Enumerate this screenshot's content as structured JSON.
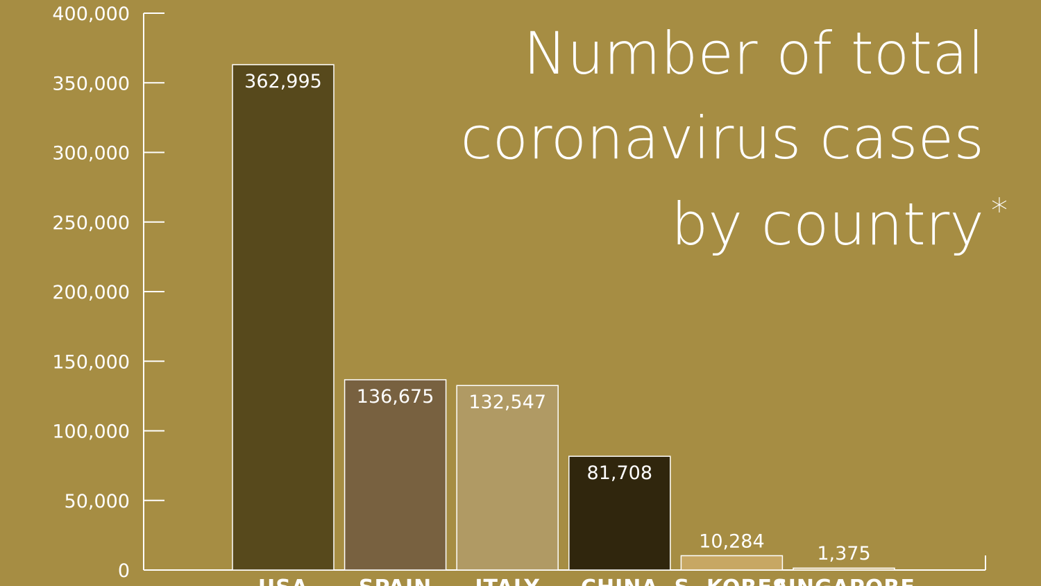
{
  "chart_data": {
    "type": "bar",
    "title_lines": [
      "Number of total",
      "coronavirus cases",
      "by country"
    ],
    "title_suffix": "*",
    "categories": [
      "USA",
      "SPAIN",
      "ITALY",
      "CHINA",
      "S. KOREA",
      "SINGAPORE"
    ],
    "values": [
      362995,
      136675,
      132547,
      81708,
      10284,
      1375
    ],
    "value_labels": [
      "362,995",
      "136,675",
      "132,547",
      "81,708",
      "10,284",
      "1,375"
    ],
    "bar_colors": [
      "#57491c",
      "#786140",
      "#b09a64",
      "#30260d",
      "#c7a763",
      "#c5aa6d"
    ],
    "value_label_colors": [
      "#ffffff",
      "#ffffff",
      "#ffffff",
      "#ffffff",
      "#ffffff",
      "#ffffff"
    ],
    "ylim": [
      0,
      400000
    ],
    "y_ticks": [
      0,
      50000,
      100000,
      150000,
      200000,
      250000,
      300000,
      350000,
      400000
    ],
    "y_tick_labels": [
      "0",
      "50,000",
      "100,000",
      "150,000",
      "200,000",
      "250,000",
      "300,000",
      "350,000",
      "400,000"
    ],
    "xlabel": "",
    "ylabel": "",
    "grid": false,
    "legend": "none"
  },
  "colors": {
    "background": "#a68d43",
    "axis": "#ffffff",
    "text": "#ffffff",
    "bar_outline": "#ffffff"
  }
}
